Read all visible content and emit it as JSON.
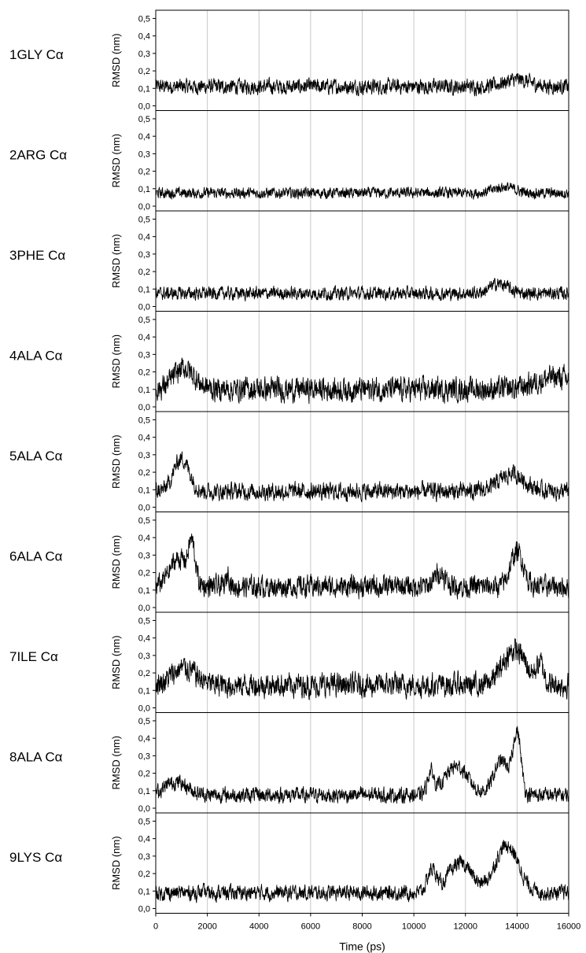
{
  "figure": {
    "xlabel": "Time (ps)",
    "x_ticks": [
      "0",
      "2000",
      "4000",
      "6000",
      "8000",
      "10000",
      "12000",
      "14000",
      "16000"
    ],
    "y_ticks": [
      "0,0",
      "0,1",
      "0,2",
      "0,3",
      "0,4",
      "0,5"
    ],
    "ylabel": "RMSD (nm)"
  },
  "chart_data": [
    {
      "type": "line",
      "row_label": "1GLY Cα",
      "ylabel": "RMSD (nm)",
      "xlim": [
        0,
        16000
      ],
      "ylim": [
        0,
        0.52
      ],
      "grid": "vertical",
      "baseline_mean": 0.11,
      "noise_amplitude": 0.035,
      "features": [
        {
          "x": 14000,
          "peak": 0.15,
          "width": 1000
        }
      ]
    },
    {
      "type": "line",
      "row_label": "2ARG Cα",
      "ylabel": "RMSD (nm)",
      "xlim": [
        0,
        16000
      ],
      "ylim": [
        0,
        0.52
      ],
      "grid": "vertical",
      "baseline_mean": 0.075,
      "noise_amplitude": 0.025,
      "features": [
        {
          "x": 13500,
          "peak": 0.11,
          "width": 800
        }
      ]
    },
    {
      "type": "line",
      "row_label": "3PHE Cα",
      "ylabel": "RMSD (nm)",
      "xlim": [
        0,
        16000
      ],
      "ylim": [
        0,
        0.52
      ],
      "grid": "vertical",
      "baseline_mean": 0.075,
      "noise_amplitude": 0.03,
      "features": [
        {
          "x": 13300,
          "peak": 0.13,
          "width": 700
        }
      ]
    },
    {
      "type": "line",
      "row_label": "4ALA Cα",
      "ylabel": "RMSD (nm)",
      "xlim": [
        0,
        16000
      ],
      "ylim": [
        0,
        0.52
      ],
      "grid": "vertical",
      "baseline_mean": 0.1,
      "noise_amplitude": 0.055,
      "features": [
        {
          "x": 1100,
          "peak": 0.22,
          "width": 800
        },
        {
          "x": 15500,
          "peak": 0.17,
          "width": 1500
        }
      ]
    },
    {
      "type": "line",
      "row_label": "5ALA Cα",
      "ylabel": "RMSD (nm)",
      "xlim": [
        0,
        16000
      ],
      "ylim": [
        0,
        0.52
      ],
      "grid": "vertical",
      "baseline_mean": 0.09,
      "noise_amplitude": 0.04,
      "features": [
        {
          "x": 1000,
          "peak": 0.28,
          "width": 600
        },
        {
          "x": 13800,
          "peak": 0.19,
          "width": 1000
        }
      ]
    },
    {
      "type": "line",
      "row_label": "6ALA Cα",
      "ylabel": "RMSD (nm)",
      "xlim": [
        0,
        16000
      ],
      "ylim": [
        0,
        0.52
      ],
      "grid": "vertical",
      "baseline_mean": 0.12,
      "noise_amplitude": 0.05,
      "features": [
        {
          "x": 900,
          "peak": 0.28,
          "width": 700
        },
        {
          "x": 1400,
          "peak": 0.33,
          "width": 250
        },
        {
          "x": 2800,
          "peak": 0.2,
          "width": 120
        },
        {
          "x": 11000,
          "peak": 0.2,
          "width": 400
        },
        {
          "x": 14000,
          "peak": 0.32,
          "width": 500
        }
      ]
    },
    {
      "type": "line",
      "row_label": "7ILE Cα",
      "ylabel": "RMSD (nm)",
      "xlim": [
        0,
        16000
      ],
      "ylim": [
        0,
        0.52
      ],
      "grid": "vertical",
      "baseline_mean": 0.13,
      "noise_amplitude": 0.055,
      "features": [
        {
          "x": 1100,
          "peak": 0.23,
          "width": 900
        },
        {
          "x": 13900,
          "peak": 0.33,
          "width": 900
        },
        {
          "x": 14900,
          "peak": 0.24,
          "width": 300
        }
      ]
    },
    {
      "type": "line",
      "row_label": "8ALA Cα",
      "ylabel": "RMSD (nm)",
      "xlim": [
        0,
        16000
      ],
      "ylim": [
        0,
        0.52
      ],
      "grid": "vertical",
      "baseline_mean": 0.075,
      "noise_amplitude": 0.035,
      "features": [
        {
          "x": 800,
          "peak": 0.15,
          "width": 900
        },
        {
          "x": 10650,
          "peak": 0.2,
          "width": 250
        },
        {
          "x": 11650,
          "peak": 0.24,
          "width": 900
        },
        {
          "x": 13400,
          "peak": 0.27,
          "width": 600
        },
        {
          "x": 14000,
          "peak": 0.42,
          "width": 300
        }
      ]
    },
    {
      "type": "line",
      "row_label": "9LYS Cα",
      "ylabel": "RMSD (nm)",
      "xlim": [
        0,
        16000
      ],
      "ylim": [
        0,
        0.52
      ],
      "grid": "vertical",
      "baseline_mean": 0.09,
      "noise_amplitude": 0.035,
      "features": [
        {
          "x": 10700,
          "peak": 0.22,
          "width": 350
        },
        {
          "x": 11800,
          "peak": 0.26,
          "width": 900
        },
        {
          "x": 13600,
          "peak": 0.36,
          "width": 900
        }
      ]
    }
  ]
}
